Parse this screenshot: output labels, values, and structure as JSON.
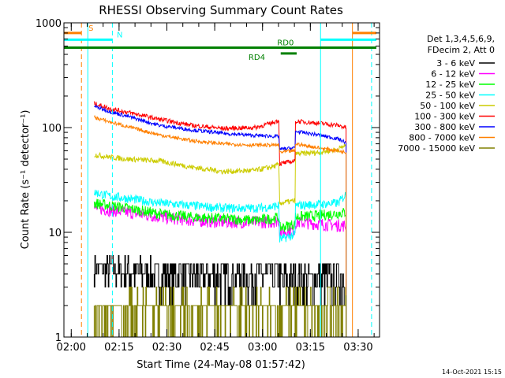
{
  "chart_data": {
    "type": "line",
    "title": "RHESSI Observing Summary Count Rates",
    "xlabel": "Start Time (24-May-08 01:57:42)",
    "ylabel": "Count Rate (s⁻¹ detector⁻¹)",
    "yscale": "log",
    "ylim": [
      1,
      1000
    ],
    "xlim_minutes": [
      0,
      99
    ],
    "y_ticks": [
      {
        "value": 1,
        "label": "1"
      },
      {
        "value": 10,
        "label": "10"
      },
      {
        "value": 100,
        "label": "100"
      },
      {
        "value": 1000,
        "label": "1000"
      }
    ],
    "x_ticks": [
      {
        "minutes": 2.3,
        "label": "02:00"
      },
      {
        "minutes": 17.3,
        "label": "02:15"
      },
      {
        "minutes": 32.3,
        "label": "02:30"
      },
      {
        "minutes": 47.3,
        "label": "02:45"
      },
      {
        "minutes": 62.3,
        "label": "03:00"
      },
      {
        "minutes": 77.3,
        "label": "03:15"
      },
      {
        "minutes": 92.3,
        "label": "03:30"
      }
    ],
    "legend_header": [
      "Det 1,3,4,5,6,9,",
      "FDecim 2, Att 0"
    ],
    "legend_position": "top-right",
    "footer": "14-Oct-2021 15:15",
    "series": [
      {
        "name": "3 - 6 keV",
        "color": "#000000",
        "x": [
          9.5,
          20,
          30,
          40,
          50,
          60,
          67.5,
          67.6,
          72.5,
          72.6,
          80,
          88.5
        ],
        "y": [
          4.5,
          4.2,
          4.0,
          3.9,
          3.8,
          3.8,
          3.9,
          3.3,
          3.4,
          3.6,
          3.6,
          3.6
        ]
      },
      {
        "name": "6 - 12 keV",
        "color": "#ff00ff",
        "x": [
          9.5,
          20,
          30,
          40,
          50,
          60,
          65,
          67.5,
          67.6,
          72.5,
          72.6,
          80,
          88.5
        ],
        "y": [
          17,
          15.5,
          14,
          13,
          12.5,
          12.5,
          12.5,
          13,
          10,
          10.5,
          12.5,
          12,
          11.5
        ]
      },
      {
        "name": "12 - 25 keV",
        "color": "#00ff00",
        "x": [
          9.5,
          20,
          30,
          40,
          50,
          60,
          65,
          67.5,
          67.6,
          72.5,
          72.6,
          80,
          88.5
        ],
        "y": [
          19,
          17,
          15,
          14,
          13.5,
          13,
          13.5,
          14,
          11,
          12,
          14,
          14.5,
          15.5
        ]
      },
      {
        "name": "25 - 50 keV",
        "color": "#00ffff",
        "x": [
          9.5,
          15,
          20,
          30,
          40,
          50,
          60,
          65,
          67.5,
          67.6,
          72.5,
          72.6,
          80,
          86,
          88.5
        ],
        "y": [
          24,
          22,
          21,
          19,
          18,
          17,
          17,
          17.5,
          18,
          8.5,
          9.5,
          18,
          18.5,
          19,
          23
        ]
      },
      {
        "name": "50 - 100 keV",
        "color": "#cccc00",
        "x": [
          9.5,
          15,
          20,
          30,
          40,
          50,
          60,
          65,
          67.5,
          67.6,
          72.5,
          72.6,
          80,
          86,
          88.5
        ],
        "y": [
          55,
          52,
          50,
          48,
          42,
          38,
          39,
          42,
          44,
          19,
          20,
          56,
          58,
          62,
          68
        ]
      },
      {
        "name": "100 - 300 keV",
        "color": "#ff0000",
        "x": [
          9.5,
          15,
          20,
          30,
          40,
          50,
          60,
          65,
          67.5,
          67.6,
          72.5,
          72.6,
          80,
          86,
          88.5
        ],
        "y": [
          170,
          150,
          140,
          120,
          105,
          98,
          100,
          110,
          118,
          45,
          48,
          115,
          110,
          105,
          100
        ]
      },
      {
        "name": "300 - 800 keV",
        "color": "#0000ff",
        "x": [
          9.5,
          15,
          20,
          30,
          40,
          50,
          60,
          65,
          67.5,
          67.6,
          72.5,
          72.6,
          80,
          86,
          88.5
        ],
        "y": [
          160,
          140,
          128,
          105,
          95,
          88,
          84,
          83,
          82,
          62,
          64,
          92,
          85,
          78,
          72
        ]
      },
      {
        "name": "800 - 7000 keV",
        "color": "#ff8000",
        "x": [
          9.5,
          15,
          20,
          30,
          40,
          50,
          60,
          65,
          67.5,
          67.6,
          72.5,
          72.6,
          80,
          86,
          88.5
        ],
        "y": [
          125,
          112,
          102,
          85,
          75,
          70,
          68,
          68,
          68,
          58,
          60,
          70,
          64,
          60,
          58
        ]
      },
      {
        "name": "7000 - 15000 keV",
        "color": "#808000",
        "x": [
          9.5,
          20,
          30,
          40,
          50,
          60,
          70,
          80,
          88.5
        ],
        "y": [
          2.0,
          2.5,
          2.5,
          2.5,
          2.5,
          2.5,
          2.5,
          2.5,
          2.5
        ]
      }
    ],
    "markers": [
      {
        "type": "vline",
        "minutes": 7.5,
        "color": "#00ffff",
        "style": "solid"
      },
      {
        "type": "vline",
        "minutes": 5.5,
        "color": "#ff8000",
        "style": "dashed"
      },
      {
        "type": "vline",
        "minutes": 15.2,
        "color": "#00ffff",
        "style": "dashed"
      },
      {
        "type": "vline",
        "minutes": 80.5,
        "color": "#00ffff",
        "style": "solid"
      },
      {
        "type": "vline",
        "minutes": 90.5,
        "color": "#ff8000",
        "style": "solid"
      },
      {
        "type": "vline",
        "minutes": 96.5,
        "color": "#00ffff",
        "style": "dashed"
      },
      {
        "type": "hbar",
        "label": "S",
        "color": "#ff8000",
        "x_start": -2,
        "x_end": 5.5,
        "y": 800,
        "label_minutes": 8.5
      },
      {
        "type": "hbar",
        "color": "#ff8000",
        "x_start": 90.5,
        "x_end": 98,
        "y": 800
      },
      {
        "type": "hbar",
        "label": "N",
        "color": "#00ffff",
        "x_start": -2,
        "x_end": 15.2,
        "y": 690,
        "label_minutes": 17.5
      },
      {
        "type": "hbar",
        "color": "#00ffff",
        "x_start": 80.5,
        "x_end": 98,
        "y": 690
      },
      {
        "type": "hbar",
        "label": "RD0",
        "color": "#008000",
        "x_start": -2,
        "x_end": 98,
        "y": 580,
        "label_minutes": 69.5
      },
      {
        "type": "hbar",
        "label": "RD4",
        "color": "#008000",
        "x_start": 68,
        "x_end": 73,
        "y": 510,
        "label_minutes": 60.5
      }
    ]
  }
}
